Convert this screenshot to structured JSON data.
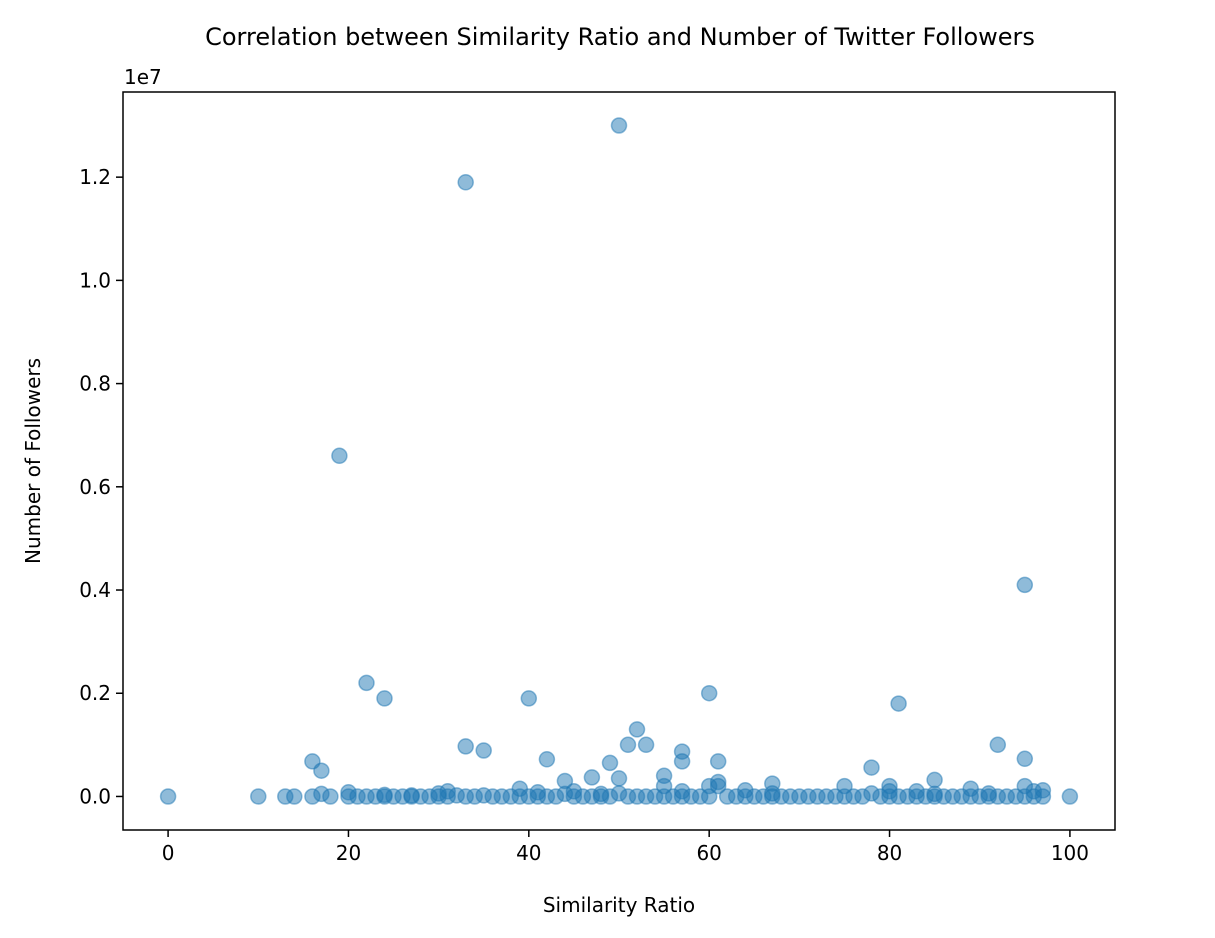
{
  "chart_data": {
    "type": "scatter",
    "title": "Correlation between Similarity Ratio and Number of Twitter Followers",
    "xlabel": "Similarity Ratio",
    "ylabel": "Number of Followers",
    "y_offset_label": "1e7",
    "xlim": [
      -5,
      105
    ],
    "ylim": [
      -650000,
      13650000
    ],
    "x_ticks": [
      0,
      20,
      40,
      60,
      80,
      100
    ],
    "x_tick_labels": [
      "0",
      "20",
      "40",
      "60",
      "80",
      "100"
    ],
    "y_ticks": [
      0,
      2000000,
      4000000,
      6000000,
      8000000,
      10000000,
      12000000
    ],
    "y_tick_labels": [
      "0.0",
      "0.2",
      "0.4",
      "0.6",
      "0.8",
      "1.0",
      "1.2"
    ],
    "grid": false,
    "marker_color": "#1f77b4",
    "marker_alpha": 0.5,
    "points": [
      [
        0,
        0
      ],
      [
        10,
        0
      ],
      [
        13,
        0
      ],
      [
        14,
        0
      ],
      [
        16,
        0
      ],
      [
        16,
        680000
      ],
      [
        17,
        500000
      ],
      [
        17,
        50000
      ],
      [
        18,
        0
      ],
      [
        19,
        6600000
      ],
      [
        20,
        80000
      ],
      [
        20,
        0
      ],
      [
        21,
        0
      ],
      [
        22,
        2200000
      ],
      [
        22,
        0
      ],
      [
        23,
        0
      ],
      [
        24,
        1900000
      ],
      [
        24,
        0
      ],
      [
        24,
        30000
      ],
      [
        25,
        0
      ],
      [
        26,
        0
      ],
      [
        27,
        0
      ],
      [
        27,
        20000
      ],
      [
        28,
        0
      ],
      [
        29,
        0
      ],
      [
        30,
        60000
      ],
      [
        30,
        0
      ],
      [
        31,
        100000
      ],
      [
        31,
        0
      ],
      [
        32,
        20000
      ],
      [
        33,
        11900000
      ],
      [
        33,
        970000
      ],
      [
        33,
        0
      ],
      [
        34,
        0
      ],
      [
        35,
        890000
      ],
      [
        35,
        20000
      ],
      [
        36,
        0
      ],
      [
        37,
        0
      ],
      [
        38,
        0
      ],
      [
        39,
        150000
      ],
      [
        39,
        0
      ],
      [
        40,
        1900000
      ],
      [
        40,
        0
      ],
      [
        41,
        80000
      ],
      [
        41,
        0
      ],
      [
        42,
        720000
      ],
      [
        42,
        0
      ],
      [
        43,
        0
      ],
      [
        44,
        300000
      ],
      [
        44,
        50000
      ],
      [
        45,
        0
      ],
      [
        45,
        100000
      ],
      [
        46,
        0
      ],
      [
        47,
        370000
      ],
      [
        47,
        0
      ],
      [
        48,
        50000
      ],
      [
        48,
        0
      ],
      [
        49,
        650000
      ],
      [
        49,
        0
      ],
      [
        50,
        13000000
      ],
      [
        50,
        350000
      ],
      [
        50,
        60000
      ],
      [
        51,
        1000000
      ],
      [
        51,
        0
      ],
      [
        52,
        1300000
      ],
      [
        52,
        0
      ],
      [
        53,
        1000000
      ],
      [
        53,
        0
      ],
      [
        54,
        0
      ],
      [
        55,
        400000
      ],
      [
        55,
        200000
      ],
      [
        55,
        0
      ],
      [
        56,
        0
      ],
      [
        57,
        870000
      ],
      [
        57,
        680000
      ],
      [
        57,
        100000
      ],
      [
        57,
        0
      ],
      [
        58,
        0
      ],
      [
        59,
        0
      ],
      [
        60,
        2000000
      ],
      [
        60,
        200000
      ],
      [
        60,
        0
      ],
      [
        61,
        680000
      ],
      [
        61,
        280000
      ],
      [
        61,
        200000
      ],
      [
        62,
        0
      ],
      [
        63,
        0
      ],
      [
        64,
        120000
      ],
      [
        64,
        0
      ],
      [
        65,
        0
      ],
      [
        66,
        0
      ],
      [
        67,
        250000
      ],
      [
        67,
        60000
      ],
      [
        67,
        0
      ],
      [
        68,
        0
      ],
      [
        69,
        0
      ],
      [
        70,
        0
      ],
      [
        71,
        0
      ],
      [
        72,
        0
      ],
      [
        73,
        0
      ],
      [
        74,
        0
      ],
      [
        75,
        200000
      ],
      [
        75,
        0
      ],
      [
        76,
        0
      ],
      [
        77,
        0
      ],
      [
        78,
        560000
      ],
      [
        78,
        60000
      ],
      [
        79,
        0
      ],
      [
        80,
        200000
      ],
      [
        80,
        100000
      ],
      [
        80,
        0
      ],
      [
        81,
        1800000
      ],
      [
        81,
        0
      ],
      [
        82,
        0
      ],
      [
        83,
        100000
      ],
      [
        83,
        0
      ],
      [
        84,
        0
      ],
      [
        85,
        320000
      ],
      [
        85,
        50000
      ],
      [
        85,
        0
      ],
      [
        86,
        0
      ],
      [
        87,
        0
      ],
      [
        88,
        0
      ],
      [
        89,
        150000
      ],
      [
        89,
        0
      ],
      [
        90,
        0
      ],
      [
        91,
        60000
      ],
      [
        91,
        0
      ],
      [
        92,
        1000000
      ],
      [
        92,
        0
      ],
      [
        93,
        0
      ],
      [
        94,
        0
      ],
      [
        95,
        4100000
      ],
      [
        95,
        730000
      ],
      [
        95,
        200000
      ],
      [
        95,
        0
      ],
      [
        96,
        100000
      ],
      [
        96,
        0
      ],
      [
        97,
        120000
      ],
      [
        97,
        0
      ],
      [
        100,
        0
      ]
    ]
  }
}
